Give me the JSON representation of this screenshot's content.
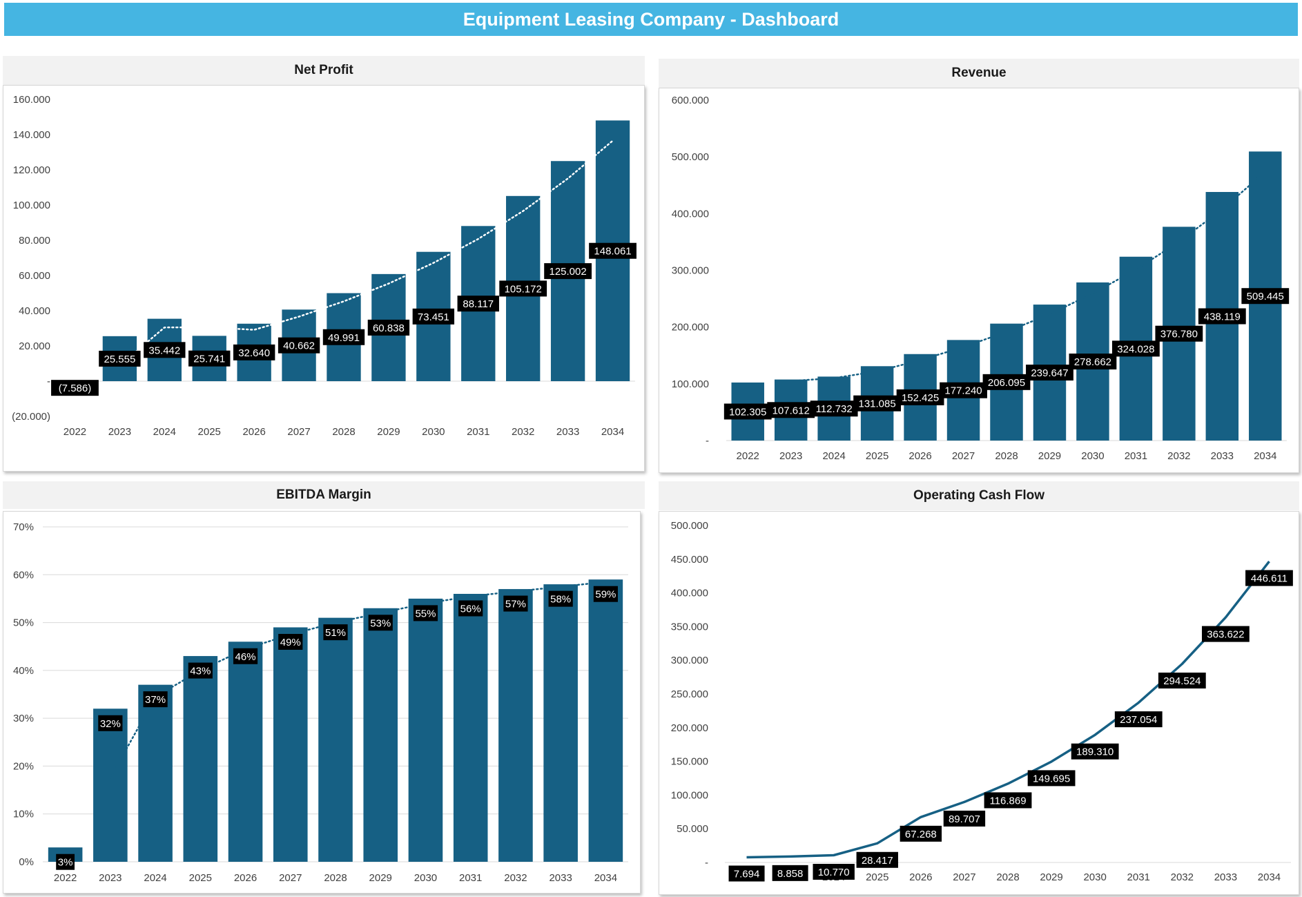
{
  "dashboard_title": "Equipment Leasing Company - Dashboard",
  "colors": {
    "banner": "#45b5e2",
    "bar": "#166084",
    "line": "#166084",
    "label_bg": "#000000",
    "label_text": "#ffffff",
    "panel_header": "#f2f2f2"
  },
  "chart_data": [
    {
      "id": "net_profit",
      "type": "bar",
      "title": "Net Profit",
      "categories": [
        "2022",
        "2023",
        "2024",
        "2025",
        "2026",
        "2027",
        "2028",
        "2029",
        "2030",
        "2031",
        "2032",
        "2033",
        "2034"
      ],
      "values": [
        -7586,
        25555,
        35442,
        25741,
        32640,
        40662,
        49991,
        60838,
        73451,
        88117,
        105172,
        125002,
        148061
      ],
      "data_labels": [
        "(7.586)",
        "25.555",
        "35.442",
        "25.741",
        "32.640",
        "40.662",
        "49.991",
        "60.838",
        "73.451",
        "88.117",
        "105.172",
        "125.002",
        "148.061"
      ],
      "y_ticks": [
        -20000,
        0,
        20000,
        40000,
        60000,
        80000,
        100000,
        120000,
        140000,
        160000
      ],
      "y_tick_labels": [
        "(20.000)",
        "-",
        "20.000",
        "40.000",
        "60.000",
        "80.000",
        "100.000",
        "120.000",
        "140.000",
        "160.000"
      ],
      "ylim": [
        -20000,
        160000
      ],
      "trendline": "dotted",
      "grid": false
    },
    {
      "id": "revenue",
      "type": "bar",
      "title": "Revenue",
      "categories": [
        "2022",
        "2023",
        "2024",
        "2025",
        "2026",
        "2027",
        "2028",
        "2029",
        "2030",
        "2031",
        "2032",
        "2033",
        "2034"
      ],
      "values": [
        102305,
        107612,
        112732,
        131085,
        152425,
        177240,
        206095,
        239647,
        278662,
        324028,
        376780,
        438119,
        509445
      ],
      "data_labels": [
        "102.305",
        "107.612",
        "112.732",
        "131.085",
        "152.425",
        "177.240",
        "206.095",
        "239.647",
        "278.662",
        "324.028",
        "376.780",
        "438.119",
        "509.445"
      ],
      "y_ticks": [
        0,
        100000,
        200000,
        300000,
        400000,
        500000,
        600000
      ],
      "y_tick_labels": [
        "-",
        "100.000",
        "200.000",
        "300.000",
        "400.000",
        "500.000",
        "600.000"
      ],
      "ylim": [
        0,
        600000
      ],
      "trendline": "dotted",
      "grid": false
    },
    {
      "id": "ebitda_margin",
      "type": "bar",
      "title": "EBITDA Margin",
      "categories": [
        "2022",
        "2023",
        "2024",
        "2025",
        "2026",
        "2027",
        "2028",
        "2029",
        "2030",
        "2031",
        "2032",
        "2033",
        "2034"
      ],
      "values": [
        0.03,
        0.32,
        0.37,
        0.43,
        0.46,
        0.49,
        0.51,
        0.53,
        0.55,
        0.56,
        0.57,
        0.58,
        0.59
      ],
      "data_labels": [
        "3%",
        "32%",
        "37%",
        "43%",
        "46%",
        "49%",
        "51%",
        "53%",
        "55%",
        "56%",
        "57%",
        "58%",
        "59%"
      ],
      "y_ticks": [
        0,
        0.1,
        0.2,
        0.3,
        0.4,
        0.5,
        0.6,
        0.7
      ],
      "y_tick_labels": [
        "0%",
        "10%",
        "20%",
        "30%",
        "40%",
        "50%",
        "60%",
        "70%"
      ],
      "ylim": [
        0,
        0.7
      ],
      "trendline": "dotted",
      "grid": true
    },
    {
      "id": "operating_cash_flow",
      "type": "line",
      "title": "Operating Cash Flow",
      "categories": [
        "2022",
        "2023",
        "2024",
        "2025",
        "2026",
        "2027",
        "2028",
        "2029",
        "2030",
        "2031",
        "2032",
        "2033",
        "2034"
      ],
      "values": [
        7694,
        8858,
        10770,
        28417,
        67268,
        89707,
        116869,
        149695,
        189310,
        237054,
        294524,
        363622,
        446611
      ],
      "data_labels": [
        "7.694",
        "8.858",
        "10.770",
        "28.417",
        "67.268",
        "89.707",
        "116.869",
        "149.695",
        "189.310",
        "237.054",
        "294.524",
        "363.622",
        "446.611"
      ],
      "y_ticks": [
        0,
        50000,
        100000,
        150000,
        200000,
        250000,
        300000,
        350000,
        400000,
        450000,
        500000
      ],
      "y_tick_labels": [
        "-",
        "50.000",
        "100.000",
        "150.000",
        "200.000",
        "250.000",
        "300.000",
        "350.000",
        "400.000",
        "450.000",
        "500.000"
      ],
      "ylim": [
        0,
        500000
      ],
      "grid": false
    }
  ]
}
